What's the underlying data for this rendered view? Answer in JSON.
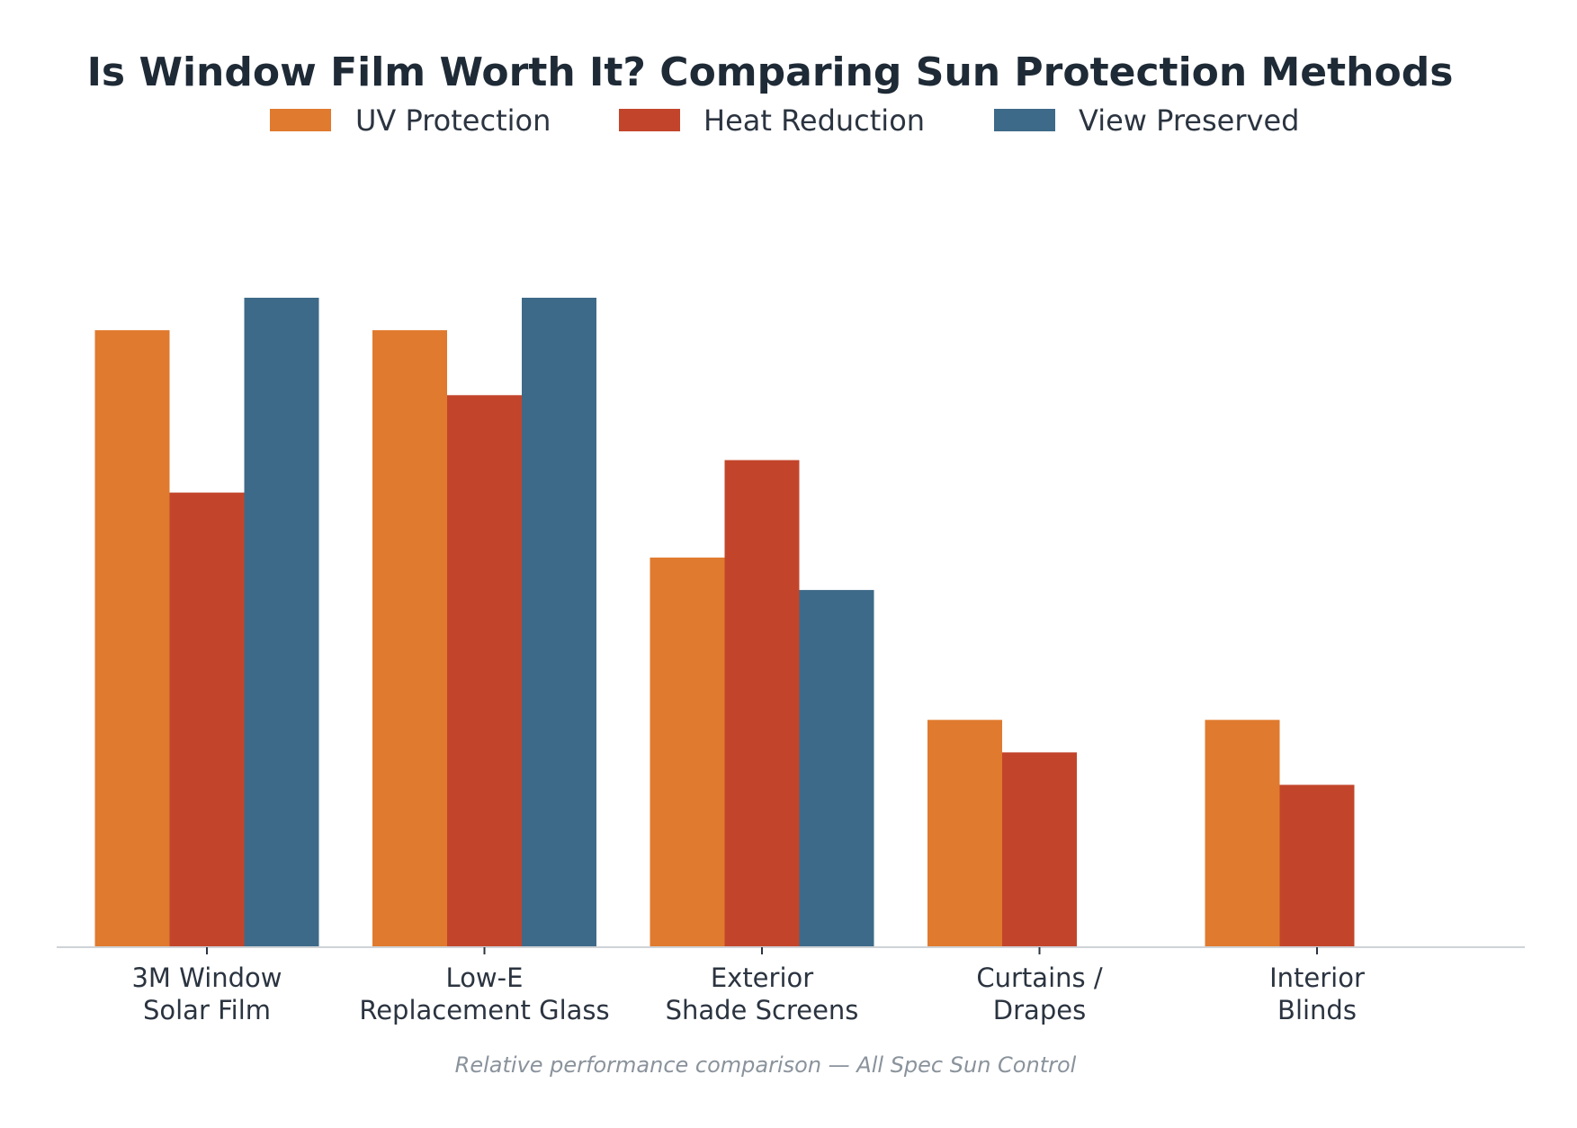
{
  "chart_data": {
    "type": "bar",
    "title": "Is Window Film Worth It? Comparing Sun Protection Methods",
    "caption": "Relative performance comparison — All Spec Sun Control",
    "categories": [
      [
        "3M Window",
        "Solar Film"
      ],
      [
        "Low-E",
        "Replacement Glass"
      ],
      [
        "Exterior",
        "Shade Screens"
      ],
      [
        "Curtains /",
        "Drapes"
      ],
      [
        "Interior",
        "Blinds"
      ]
    ],
    "series": [
      {
        "name": "UV Protection",
        "color": "#e07a2e",
        "values": [
          95,
          95,
          60,
          35,
          35
        ]
      },
      {
        "name": "Heat Reduction",
        "color": "#c2452b",
        "values": [
          70,
          85,
          75,
          30,
          25
        ]
      },
      {
        "name": "View Preserved",
        "color": "#3e6a89",
        "values": [
          100,
          100,
          55,
          0,
          0
        ]
      }
    ],
    "ylim": [
      0,
      100
    ],
    "legend_position": "top-center",
    "grid": false
  }
}
